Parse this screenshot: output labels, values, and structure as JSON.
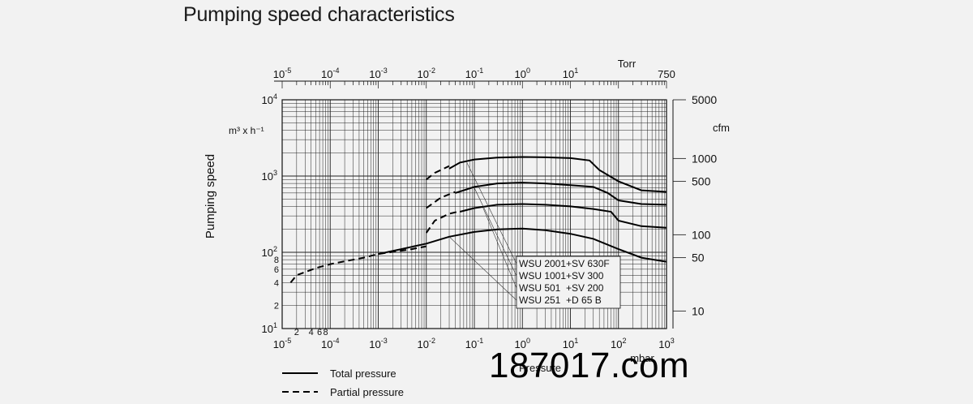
{
  "watermark": "187017.com",
  "chart_data": {
    "type": "line",
    "title": "Pumping speed characteristics",
    "ylabel": "Pumping speed",
    "y_unit": "m³ x h⁻¹",
    "y2_unit": "cfm",
    "x_unit": "mbar",
    "x_unit_secondary": "Pressure",
    "x2_unit": "Torr",
    "x_scale": "log",
    "y_scale": "log",
    "xlim": [
      1e-05,
      1000
    ],
    "ylim": [
      10,
      10000
    ],
    "grid": true,
    "x_tick_labels": [
      {
        "base": "10",
        "exp": "-5",
        "value": 1e-05
      },
      {
        "base": "10",
        "exp": "-4",
        "value": 0.0001
      },
      {
        "base": "10",
        "exp": "-3",
        "value": 0.001
      },
      {
        "base": "10",
        "exp": "-2",
        "value": 0.01
      },
      {
        "base": "10",
        "exp": "-1",
        "value": 0.1
      },
      {
        "base": "10",
        "exp": "0",
        "value": 1
      },
      {
        "base": "10",
        "exp": "1",
        "value": 10
      },
      {
        "base": "10",
        "exp": "2",
        "value": 100
      },
      {
        "base": "10",
        "exp": "3",
        "value": 1000
      }
    ],
    "x_minor_labels": [
      {
        "label": "2",
        "value": 2e-05
      },
      {
        "label": "4",
        "value": 4e-05
      },
      {
        "label": "6",
        "value": 6e-05
      },
      {
        "label": "8",
        "value": 8e-05
      }
    ],
    "y_tick_labels": [
      {
        "base": "10",
        "exp": "1",
        "value": 10
      },
      {
        "base": "10",
        "exp": "2",
        "value": 100
      },
      {
        "base": "10",
        "exp": "3",
        "value": 1000
      },
      {
        "base": "10",
        "exp": "4",
        "value": 10000
      }
    ],
    "y_minor_labels": [
      {
        "label": "2",
        "value": 20
      },
      {
        "label": "4",
        "value": 40
      },
      {
        "label": "6",
        "value": 60
      },
      {
        "label": "8",
        "value": 80
      }
    ],
    "torr_tick_labels": [
      {
        "base": "10",
        "exp": "-5",
        "value_mbar": 1e-05
      },
      {
        "base": "10",
        "exp": "-4",
        "value_mbar": 0.0001
      },
      {
        "base": "10",
        "exp": "-3",
        "value_mbar": 0.001
      },
      {
        "base": "10",
        "exp": "-2",
        "value_mbar": 0.01
      },
      {
        "base": "10",
        "exp": "-1",
        "value_mbar": 0.1
      },
      {
        "base": "10",
        "exp": "0",
        "value_mbar": 1
      },
      {
        "base": "10",
        "exp": "1",
        "value_mbar": 10
      },
      {
        "base": "750",
        "exp": "",
        "value_mbar": 1000
      }
    ],
    "cfm_tick_labels": [
      {
        "label": "5000",
        "value_m3h": 10000
      },
      {
        "label": "1000",
        "value_m3h": 1700
      },
      {
        "label": "500",
        "value_m3h": 850
      },
      {
        "label": "100",
        "value_m3h": 170
      },
      {
        "label": "50",
        "value_m3h": 85
      },
      {
        "label": "10",
        "value_m3h": 17
      }
    ],
    "legend": [
      {
        "label": "Total pressure",
        "style": "solid"
      },
      {
        "label": "Partial pressure",
        "style": "dashed"
      }
    ],
    "series_labels": [
      "WSU 2001+SV 630F",
      "WSU 1001+SV 300",
      "WSU 501  +SV 200",
      "WSU 251  +D 65 B"
    ],
    "series": [
      {
        "name": "WSU 2001+SV 630F",
        "partial": [
          [
            0.01,
            900
          ],
          [
            0.015,
            1100
          ],
          [
            0.03,
            1350
          ]
        ],
        "total": [
          [
            0.03,
            1250
          ],
          [
            0.05,
            1500
          ],
          [
            0.1,
            1650
          ],
          [
            0.3,
            1750
          ],
          [
            1,
            1780
          ],
          [
            3,
            1760
          ],
          [
            10,
            1720
          ],
          [
            25,
            1600
          ],
          [
            40,
            1200
          ],
          [
            100,
            850
          ],
          [
            300,
            650
          ],
          [
            1000,
            620
          ]
        ]
      },
      {
        "name": "WSU 1001+SV 300",
        "partial": [
          [
            0.01,
            380
          ],
          [
            0.02,
            520
          ],
          [
            0.04,
            620
          ]
        ],
        "total": [
          [
            0.04,
            600
          ],
          [
            0.1,
            720
          ],
          [
            0.3,
            800
          ],
          [
            1,
            820
          ],
          [
            3,
            800
          ],
          [
            10,
            760
          ],
          [
            30,
            720
          ],
          [
            60,
            600
          ],
          [
            100,
            480
          ],
          [
            300,
            430
          ],
          [
            1000,
            420
          ]
        ]
      },
      {
        "name": "WSU 501  +SV 200",
        "partial": [
          [
            0.01,
            180
          ],
          [
            0.015,
            260
          ],
          [
            0.03,
            320
          ],
          [
            0.05,
            345
          ]
        ],
        "total": [
          [
            0.05,
            340
          ],
          [
            0.1,
            380
          ],
          [
            0.3,
            420
          ],
          [
            1,
            430
          ],
          [
            3,
            420
          ],
          [
            10,
            400
          ],
          [
            30,
            370
          ],
          [
            70,
            340
          ],
          [
            100,
            260
          ],
          [
            300,
            220
          ],
          [
            1000,
            210
          ]
        ]
      },
      {
        "name": "WSU 251  +D 65 B",
        "partial": [
          [
            1.5e-05,
            40
          ],
          [
            2e-05,
            50
          ],
          [
            5e-05,
            62
          ],
          [
            0.0001,
            70
          ],
          [
            0.0005,
            85
          ],
          [
            0.001,
            95
          ],
          [
            0.005,
            110
          ],
          [
            0.01,
            120
          ]
        ],
        "total": [
          [
            0.001,
            95
          ],
          [
            0.003,
            110
          ],
          [
            0.01,
            130
          ],
          [
            0.03,
            160
          ],
          [
            0.1,
            185
          ],
          [
            0.3,
            200
          ],
          [
            1,
            205
          ],
          [
            3,
            195
          ],
          [
            10,
            175
          ],
          [
            30,
            150
          ],
          [
            100,
            110
          ],
          [
            300,
            85
          ],
          [
            1000,
            75
          ]
        ]
      }
    ]
  }
}
